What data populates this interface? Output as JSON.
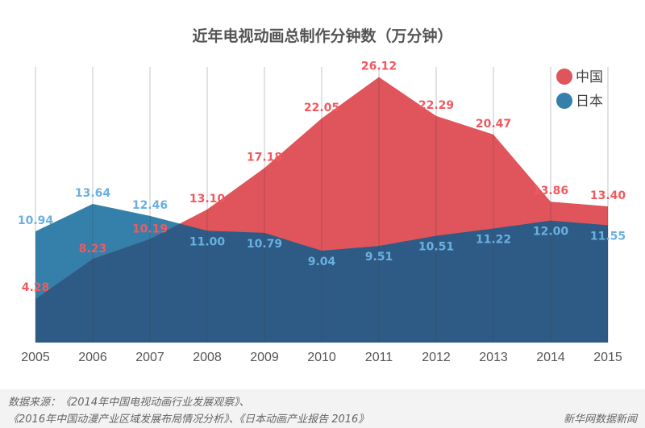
{
  "chart_data": {
    "type": "area",
    "title": "近年电视动画总制作分钟数（万分钟）",
    "x": [
      "2005",
      "2006",
      "2007",
      "2008",
      "2009",
      "2010",
      "2011",
      "2012",
      "2013",
      "2014",
      "2015"
    ],
    "series": [
      {
        "name": "中国",
        "color": "#e0555b",
        "label_color": "#f05a5f",
        "values": [
          4.28,
          8.23,
          10.19,
          13.1,
          17.18,
          22.05,
          26.12,
          22.29,
          20.47,
          13.86,
          13.4
        ],
        "labels": [
          "4.28",
          "8.23",
          "10.19",
          "13.10",
          "17.18",
          "22.05",
          "26.12",
          "22.29",
          "20.47",
          "13.86",
          "13.40"
        ]
      },
      {
        "name": "日本",
        "color": "#3580ab",
        "label_color": "#6ab0e0",
        "values": [
          10.94,
          13.64,
          12.46,
          11.0,
          10.79,
          9.04,
          9.51,
          10.51,
          11.22,
          12.0,
          11.55
        ],
        "labels": [
          "10.94",
          "13.64",
          "12.46",
          "11.00",
          "10.79",
          "9.04",
          "9.51",
          "10.51",
          "11.22",
          "12.00",
          "11.55"
        ]
      }
    ],
    "overlap_color": "#2e5b85",
    "ylim": [
      0,
      33.7
    ],
    "grid": "vertical",
    "legend": "top-right"
  },
  "footer": {
    "source_line1": "数据来源：《2014年中国电视动画行业发展观察》、",
    "source_line2": "《2016年中国动漫产业区域发展布局情况分析》、《日本动画产业报告 2016》",
    "brand": "新华网数据新闻"
  }
}
